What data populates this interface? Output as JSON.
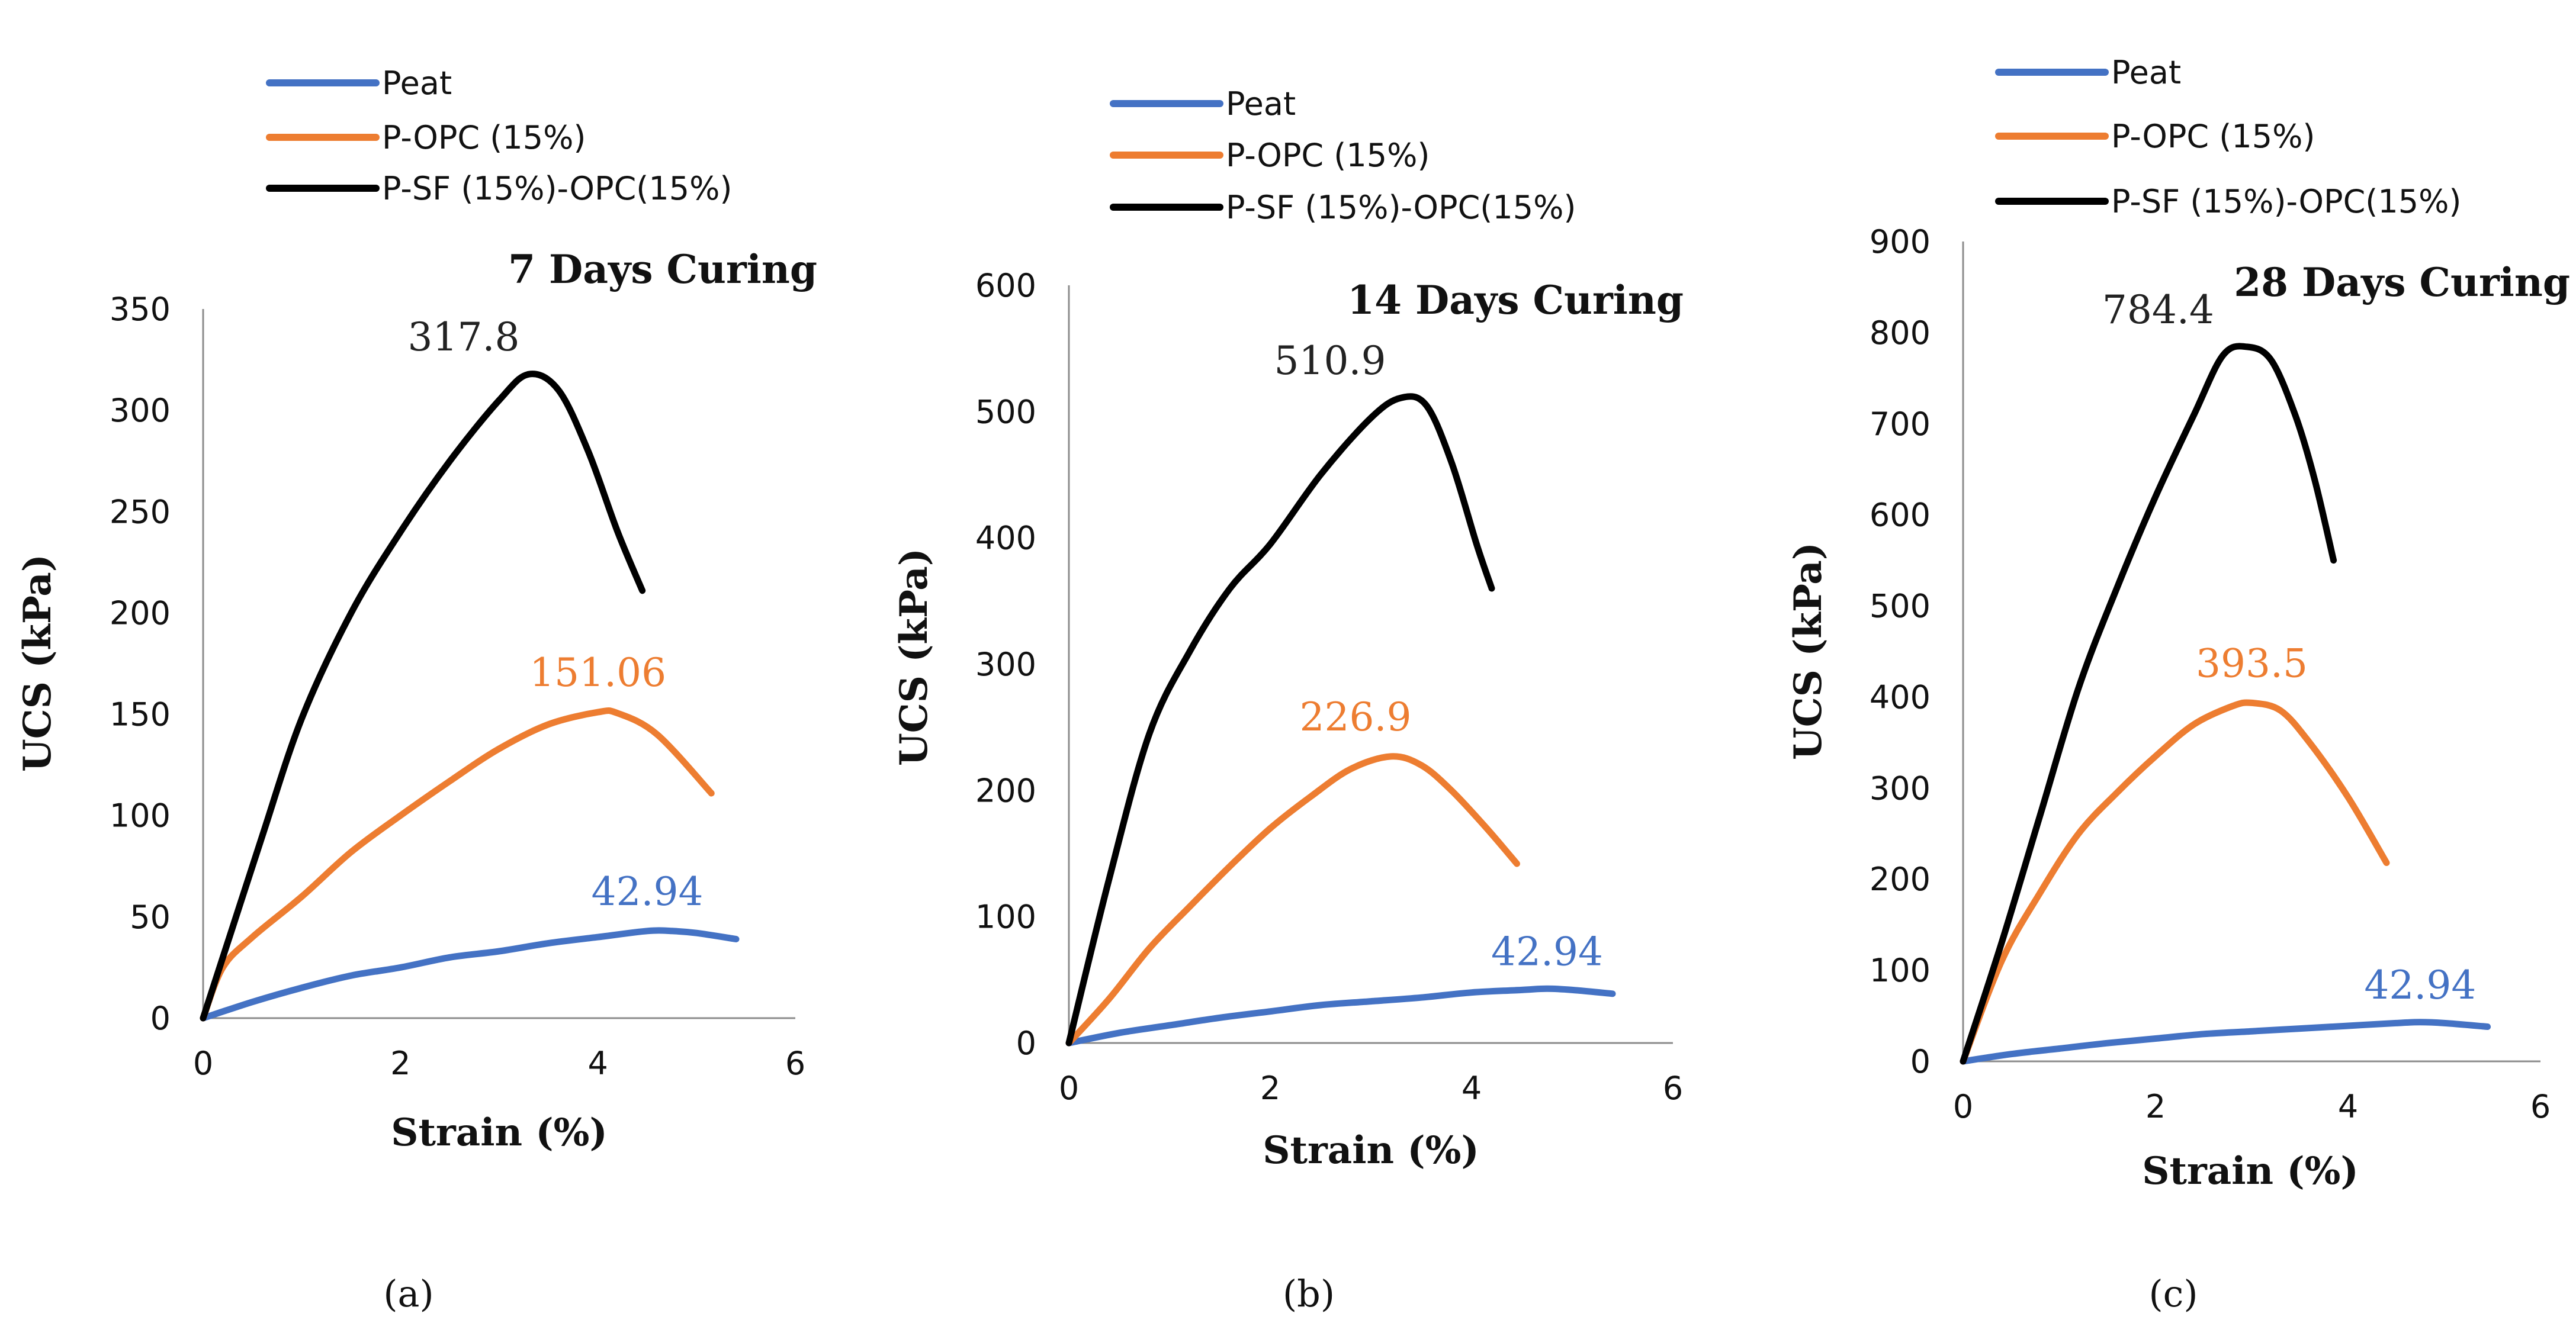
{
  "colors": {
    "peat": "#4472c4",
    "p_opc": "#ed7d31",
    "p_sf_opc": "#000000"
  },
  "chart_data": [
    {
      "type": "line",
      "title": "7 Days Curing",
      "xlabel": "Strain (%)",
      "ylabel": "UCS (kPa)",
      "caption": "(a)",
      "xlim": [
        0,
        6
      ],
      "ylim": [
        0,
        350
      ],
      "xticks": [
        "0",
        "2",
        "4",
        "6"
      ],
      "yticks": [
        "0",
        "50",
        "100",
        "150",
        "200",
        "250",
        "300",
        "350"
      ],
      "legend": [
        "Peat",
        "P-OPC (15%)",
        "P-SF (15%)-OPC(15%)"
      ],
      "series": [
        {
          "name": "Peat",
          "peak_label": "42.94",
          "x": [
            0,
            0.5,
            1,
            1.5,
            2,
            2.5,
            3,
            3.5,
            4,
            4.5,
            4.75,
            5,
            5.4
          ],
          "y": [
            0,
            8,
            15,
            21,
            25,
            30,
            33,
            37,
            40,
            43,
            43,
            42,
            39
          ]
        },
        {
          "name": "P-OPC (15%)",
          "peak_label": "151.06",
          "x": [
            0,
            0.2,
            0.5,
            1,
            1.5,
            2,
            2.5,
            3,
            3.5,
            4,
            4.2,
            4.6,
            5.15
          ],
          "y": [
            0,
            25,
            40,
            60,
            82,
            100,
            117,
            133,
            145,
            151,
            150.5,
            140,
            111
          ]
        },
        {
          "name": "P-SF (15%)-OPC(15%)",
          "peak_label": "317.8",
          "x": [
            0,
            0.3,
            0.6,
            1,
            1.5,
            2,
            2.5,
            3,
            3.3,
            3.6,
            3.9,
            4.2,
            4.45
          ],
          "y": [
            0,
            45,
            90,
            148,
            200,
            240,
            275,
            305,
            317.8,
            310,
            280,
            240,
            211
          ]
        }
      ]
    },
    {
      "type": "line",
      "title": "14 Days Curing",
      "xlabel": "Strain (%)",
      "ylabel": "UCS (kPa)",
      "caption": "(b)",
      "xlim": [
        0,
        6
      ],
      "ylim": [
        0,
        600
      ],
      "xticks": [
        "0",
        "2",
        "4",
        "6"
      ],
      "yticks": [
        "0",
        "100",
        "200",
        "300",
        "400",
        "500",
        "600"
      ],
      "legend": [
        "Peat",
        "P-OPC (15%)",
        "P-SF (15%)-OPC(15%)"
      ],
      "series": [
        {
          "name": "Peat",
          "peak_label": "42.94",
          "x": [
            0,
            0.5,
            1,
            1.5,
            2,
            2.5,
            3,
            3.5,
            4,
            4.5,
            4.75,
            5,
            5.4
          ],
          "y": [
            0,
            8,
            14,
            20,
            25,
            30,
            33,
            36,
            40,
            42,
            43,
            42,
            39
          ]
        },
        {
          "name": "P-OPC (15%)",
          "peak_label": "226.9",
          "x": [
            0,
            0.4,
            0.8,
            1.2,
            1.6,
            2,
            2.4,
            2.8,
            3.2,
            3.5,
            3.8,
            4.15,
            4.45
          ],
          "y": [
            0,
            35,
            75,
            108,
            140,
            170,
            195,
            217,
            226.9,
            220,
            200,
            170,
            142
          ]
        },
        {
          "name": "P-SF (15%)-OPC(15%)",
          "peak_label": "510.9",
          "x": [
            0,
            0.4,
            0.8,
            1.2,
            1.6,
            2,
            2.5,
            3,
            3.3,
            3.55,
            3.8,
            4.05,
            4.2
          ],
          "y": [
            0,
            130,
            245,
            310,
            360,
            395,
            450,
            495,
            510.9,
            505,
            460,
            395,
            360
          ]
        }
      ]
    },
    {
      "type": "line",
      "title": "28 Days Curing",
      "xlabel": "Strain (%)",
      "ylabel": "UCS (kPa)",
      "caption": "(c)",
      "xlim": [
        0,
        6
      ],
      "ylim": [
        0,
        900
      ],
      "xticks": [
        "0",
        "2",
        "4",
        "6"
      ],
      "yticks": [
        "0",
        "100",
        "200",
        "300",
        "400",
        "500",
        "600",
        "700",
        "800",
        "900"
      ],
      "legend": [
        "Peat",
        "P-OPC (15%)",
        "P-SF (15%)-OPC(15%)"
      ],
      "series": [
        {
          "name": "Peat",
          "peak_label": "42.94",
          "x": [
            0,
            0.5,
            1,
            1.5,
            2,
            2.5,
            3,
            3.5,
            4,
            4.5,
            4.75,
            5,
            5.45
          ],
          "y": [
            0,
            8,
            14,
            20,
            25,
            30,
            33,
            36,
            39,
            42,
            43,
            42,
            38
          ]
        },
        {
          "name": "P-OPC (15%)",
          "peak_label": "393.5",
          "x": [
            0,
            0.4,
            0.8,
            1.2,
            1.6,
            2,
            2.4,
            2.8,
            3,
            3.3,
            3.6,
            4,
            4.4
          ],
          "y": [
            0,
            110,
            185,
            250,
            295,
            335,
            370,
            390,
            393.5,
            385,
            350,
            290,
            218
          ]
        },
        {
          "name": "P-SF (15%)-OPC(15%)",
          "peak_label": "784.4",
          "x": [
            0,
            0.4,
            0.8,
            1.2,
            1.6,
            2,
            2.4,
            2.7,
            2.95,
            3.2,
            3.45,
            3.65,
            3.85
          ],
          "y": [
            0,
            130,
            270,
            410,
            520,
            620,
            710,
            775,
            784.4,
            770,
            710,
            640,
            550
          ]
        }
      ]
    }
  ]
}
